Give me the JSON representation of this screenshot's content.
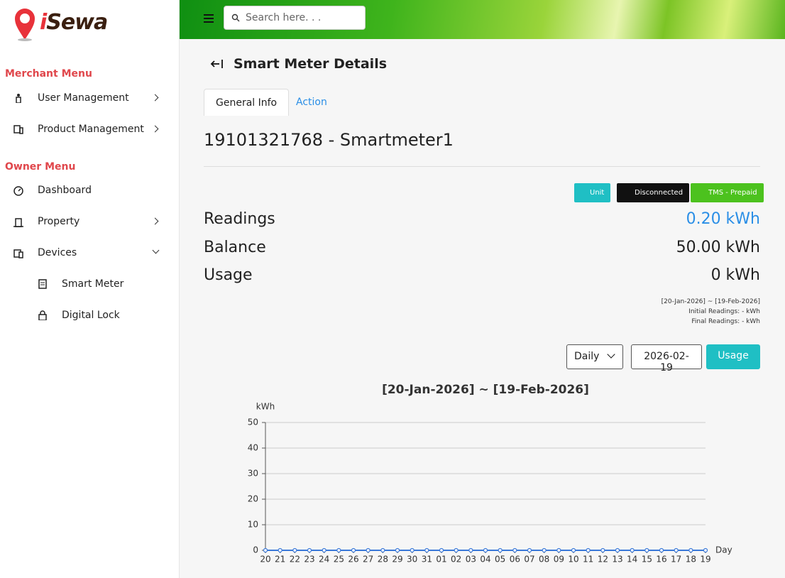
{
  "sidebar": {
    "logo_first": "i",
    "logo_rest": "Sewa",
    "sections": [
      {
        "title": "Merchant Menu",
        "items": [
          "User Management",
          "Product Management"
        ]
      },
      {
        "title": "Owner Menu",
        "items": [
          "Dashboard",
          "Property",
          "Devices",
          "Smart Meter",
          "Digital Lock"
        ]
      }
    ]
  },
  "header": {
    "search_placeholder": "Search here. . ."
  },
  "page": {
    "title": "Smart Meter Details",
    "tabs": [
      "General Info",
      "Action"
    ],
    "meter_title": "19101321768 - Smartmeter1",
    "badges": [
      "Unit",
      "Disconnected",
      "TMS - Prepaid"
    ],
    "readings": [
      {
        "label": "Readings",
        "value": "0.20 kWh"
      },
      {
        "label": "Balance",
        "value": "50.00 kWh"
      },
      {
        "label": "Usage",
        "value": "0 kWh"
      }
    ],
    "period": "[20-Jan-2026] ~ [19-Feb-2026]",
    "initial_readings": "Initial Readings: - kWh",
    "final_readings": "Final Readings: - kWh",
    "period_select": "Daily",
    "date": "2026-02-19",
    "usage_button": "Usage"
  },
  "chart_data": {
    "type": "line",
    "title": "[20-Jan-2026] ~ [19-Feb-2026]",
    "y_label": "kWh",
    "x_label": "Day",
    "categories": [
      "20",
      "21",
      "22",
      "23",
      "24",
      "25",
      "26",
      "27",
      "28",
      "29",
      "30",
      "31",
      "01",
      "02",
      "03",
      "04",
      "05",
      "06",
      "07",
      "08",
      "09",
      "10",
      "11",
      "12",
      "13",
      "14",
      "15",
      "16",
      "17",
      "18",
      "19"
    ],
    "values": [
      0,
      0,
      0,
      0,
      0,
      0,
      0,
      0,
      0,
      0,
      0,
      0,
      0,
      0,
      0,
      0,
      0,
      0,
      0,
      0,
      0,
      0,
      0,
      0,
      0,
      0,
      0,
      0,
      0,
      0,
      0
    ],
    "color": "#3a78d8",
    "ylim": [
      0,
      50
    ],
    "yticks": [
      0,
      10,
      20,
      30,
      40,
      50
    ],
    "grid": true
  }
}
